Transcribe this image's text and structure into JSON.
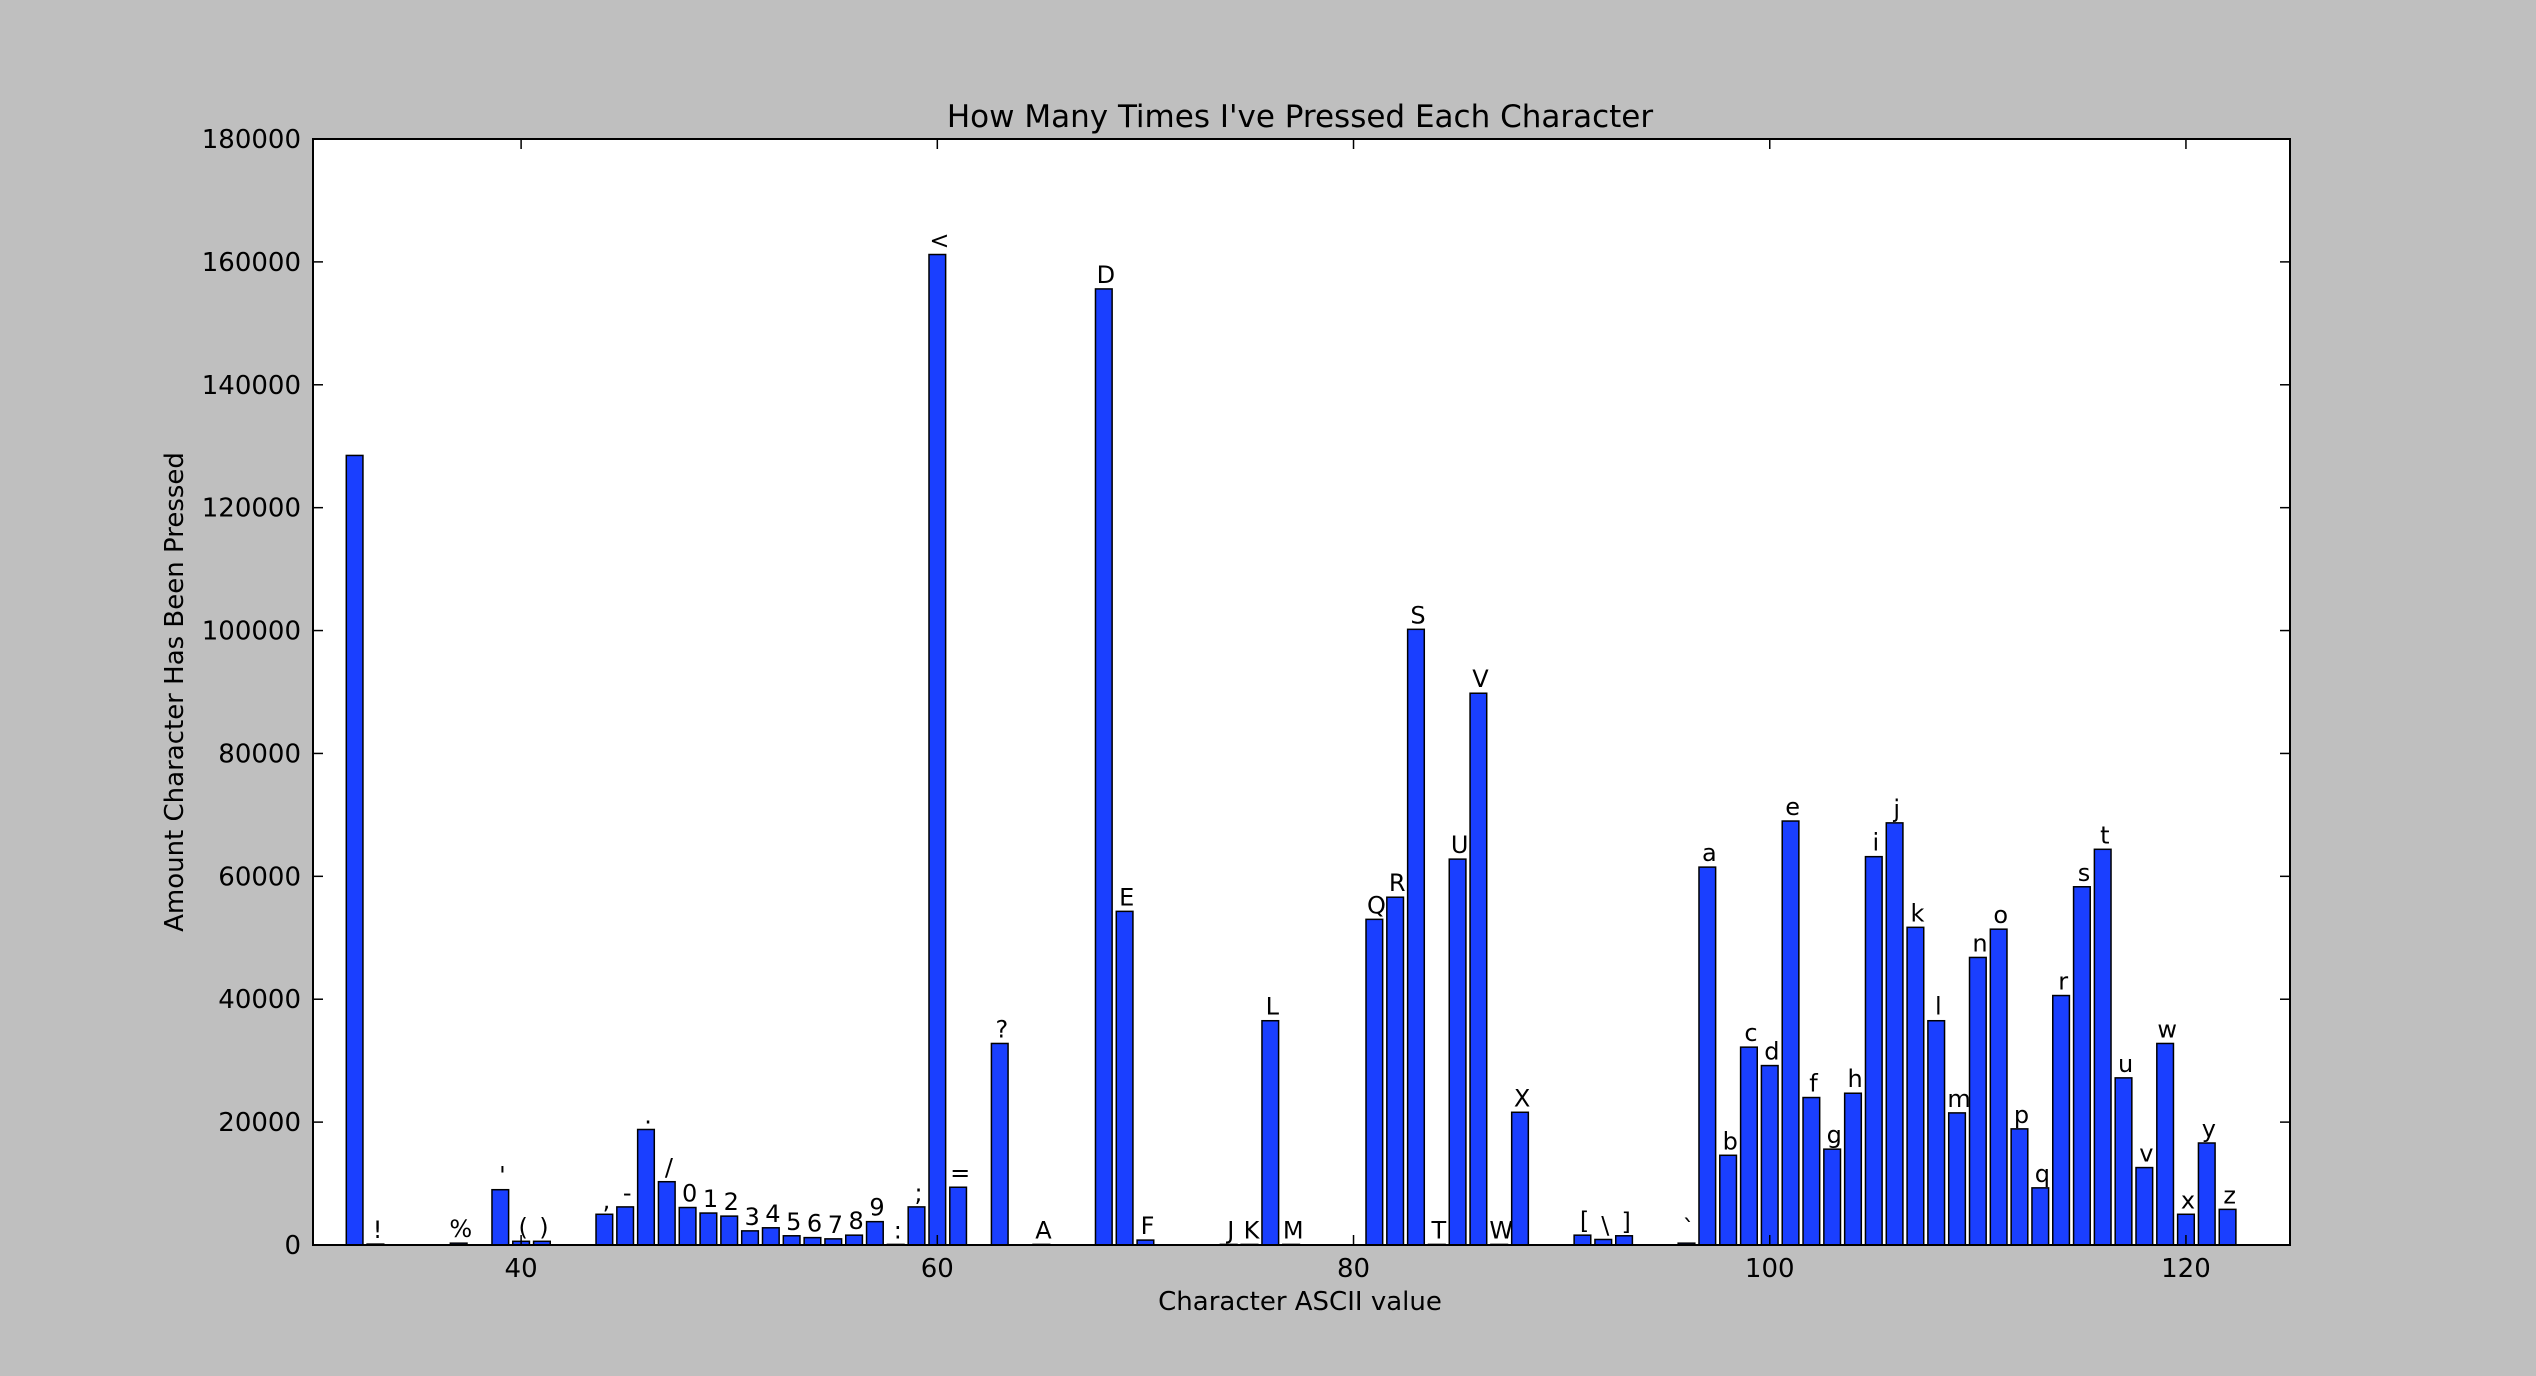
{
  "chart_data": {
    "type": "bar",
    "title": "How Many Times I've Pressed Each Character",
    "xlabel": "Character ASCII value",
    "ylabel": "Amount Character Has Been Pressed",
    "xlim": [
      30,
      125
    ],
    "ylim": [
      0,
      180000
    ],
    "xticks": [
      40,
      60,
      80,
      100,
      120
    ],
    "yticks": [
      0,
      20000,
      40000,
      60000,
      80000,
      100000,
      120000,
      140000,
      160000,
      180000
    ],
    "bar_color": "#1a3fff",
    "grid": false,
    "bars": [
      {
        "x": 32,
        "value": 128500,
        "label": ""
      },
      {
        "x": 33,
        "value": 150,
        "label": "!"
      },
      {
        "x": 37,
        "value": 300,
        "label": "%"
      },
      {
        "x": 39,
        "value": 9000,
        "label": "'"
      },
      {
        "x": 40,
        "value": 600,
        "label": "("
      },
      {
        "x": 41,
        "value": 600,
        "label": ")"
      },
      {
        "x": 44,
        "value": 5000,
        "label": ","
      },
      {
        "x": 45,
        "value": 6200,
        "label": "-"
      },
      {
        "x": 46,
        "value": 18800,
        "label": "."
      },
      {
        "x": 47,
        "value": 10300,
        "label": "/"
      },
      {
        "x": 48,
        "value": 6100,
        "label": "0"
      },
      {
        "x": 49,
        "value": 5200,
        "label": "1"
      },
      {
        "x": 50,
        "value": 4700,
        "label": "2"
      },
      {
        "x": 51,
        "value": 2300,
        "label": "3"
      },
      {
        "x": 52,
        "value": 2800,
        "label": "4"
      },
      {
        "x": 53,
        "value": 1500,
        "label": "5"
      },
      {
        "x": 54,
        "value": 1200,
        "label": "6"
      },
      {
        "x": 55,
        "value": 1000,
        "label": "7"
      },
      {
        "x": 56,
        "value": 1600,
        "label": "8"
      },
      {
        "x": 57,
        "value": 3800,
        "label": "9"
      },
      {
        "x": 58,
        "value": 100,
        "label": ":"
      },
      {
        "x": 59,
        "value": 6200,
        "label": ";"
      },
      {
        "x": 60,
        "value": 161200,
        "label": "<"
      },
      {
        "x": 61,
        "value": 9400,
        "label": "="
      },
      {
        "x": 63,
        "value": 32800,
        "label": "?"
      },
      {
        "x": 65,
        "value": 100,
        "label": "A"
      },
      {
        "x": 68,
        "value": 155600,
        "label": "D"
      },
      {
        "x": 69,
        "value": 54300,
        "label": "E"
      },
      {
        "x": 70,
        "value": 800,
        "label": "F"
      },
      {
        "x": 74,
        "value": 100,
        "label": "J"
      },
      {
        "x": 75,
        "value": 100,
        "label": "K"
      },
      {
        "x": 76,
        "value": 36500,
        "label": "L"
      },
      {
        "x": 77,
        "value": 100,
        "label": "M"
      },
      {
        "x": 81,
        "value": 53000,
        "label": "Q"
      },
      {
        "x": 82,
        "value": 56600,
        "label": "R"
      },
      {
        "x": 83,
        "value": 100200,
        "label": "S"
      },
      {
        "x": 84,
        "value": 100,
        "label": "T"
      },
      {
        "x": 85,
        "value": 62800,
        "label": "U"
      },
      {
        "x": 86,
        "value": 89800,
        "label": "V"
      },
      {
        "x": 87,
        "value": 100,
        "label": "W"
      },
      {
        "x": 88,
        "value": 21600,
        "label": "X"
      },
      {
        "x": 91,
        "value": 1600,
        "label": "["
      },
      {
        "x": 92,
        "value": 900,
        "label": "\\"
      },
      {
        "x": 93,
        "value": 1500,
        "label": "]"
      },
      {
        "x": 96,
        "value": 300,
        "label": "`"
      },
      {
        "x": 97,
        "value": 61500,
        "label": "a"
      },
      {
        "x": 98,
        "value": 14600,
        "label": "b"
      },
      {
        "x": 99,
        "value": 32200,
        "label": "c"
      },
      {
        "x": 100,
        "value": 29200,
        "label": "d"
      },
      {
        "x": 101,
        "value": 69000,
        "label": "e"
      },
      {
        "x": 102,
        "value": 24000,
        "label": "f"
      },
      {
        "x": 103,
        "value": 15600,
        "label": "g"
      },
      {
        "x": 104,
        "value": 24700,
        "label": "h"
      },
      {
        "x": 105,
        "value": 63200,
        "label": "i"
      },
      {
        "x": 106,
        "value": 68700,
        "label": "j"
      },
      {
        "x": 107,
        "value": 51700,
        "label": "k"
      },
      {
        "x": 108,
        "value": 36500,
        "label": "l"
      },
      {
        "x": 109,
        "value": 21500,
        "label": "m"
      },
      {
        "x": 110,
        "value": 46800,
        "label": "n"
      },
      {
        "x": 111,
        "value": 51400,
        "label": "o"
      },
      {
        "x": 112,
        "value": 18900,
        "label": "p"
      },
      {
        "x": 113,
        "value": 9300,
        "label": "q"
      },
      {
        "x": 114,
        "value": 40600,
        "label": "r"
      },
      {
        "x": 115,
        "value": 58300,
        "label": "s"
      },
      {
        "x": 116,
        "value": 64400,
        "label": "t"
      },
      {
        "x": 117,
        "value": 27200,
        "label": "u"
      },
      {
        "x": 118,
        "value": 12600,
        "label": "v"
      },
      {
        "x": 119,
        "value": 32800,
        "label": "w"
      },
      {
        "x": 120,
        "value": 5000,
        "label": "x"
      },
      {
        "x": 121,
        "value": 16600,
        "label": "y"
      },
      {
        "x": 122,
        "value": 5800,
        "label": "z"
      }
    ]
  }
}
